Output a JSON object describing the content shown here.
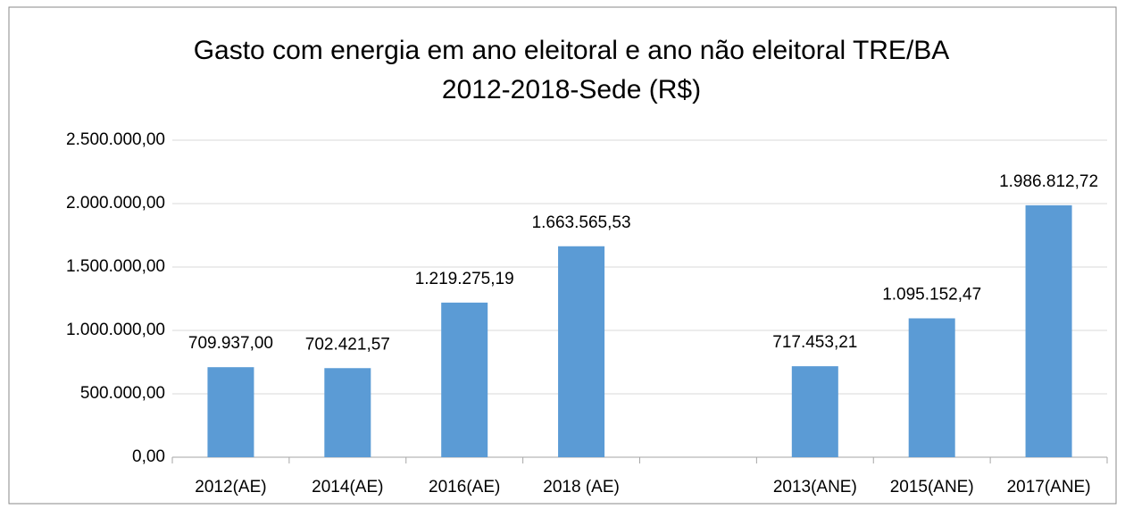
{
  "chart_data": {
    "type": "bar",
    "title": [
      "Gasto com energia em ano eleitoral e ano não eleitoral TRE/BA",
      "2012-2018-Sede (R$)"
    ],
    "categories": [
      "2012(AE)",
      "2014(AE)",
      "2016(AE)",
      "2018 (AE)",
      null,
      "2013(ANE)",
      "2015(ANE)",
      "2017(ANE)"
    ],
    "values": [
      709937.0,
      702421.57,
      1219275.19,
      1663565.53,
      null,
      717453.21,
      1095152.47,
      1986812.72
    ],
    "value_labels": [
      "709.937,00",
      "702.421,57",
      "1.219.275,19",
      "1.663.565,53",
      null,
      "717.453,21",
      "1.095.152,47",
      "1.986.812,72"
    ],
    "color": "#5b9bd5",
    "ylim": [
      0,
      2500000
    ],
    "yticks": [
      {
        "value": 0,
        "label": "0,00"
      },
      {
        "value": 500000,
        "label": "500.000,00"
      },
      {
        "value": 1000000,
        "label": "1.000.000,00"
      },
      {
        "value": 1500000,
        "label": "1.500.000,00"
      },
      {
        "value": 2000000,
        "label": "2.000.000,00"
      },
      {
        "value": 2500000,
        "label": "2.500.000,00"
      }
    ],
    "grid": true
  }
}
